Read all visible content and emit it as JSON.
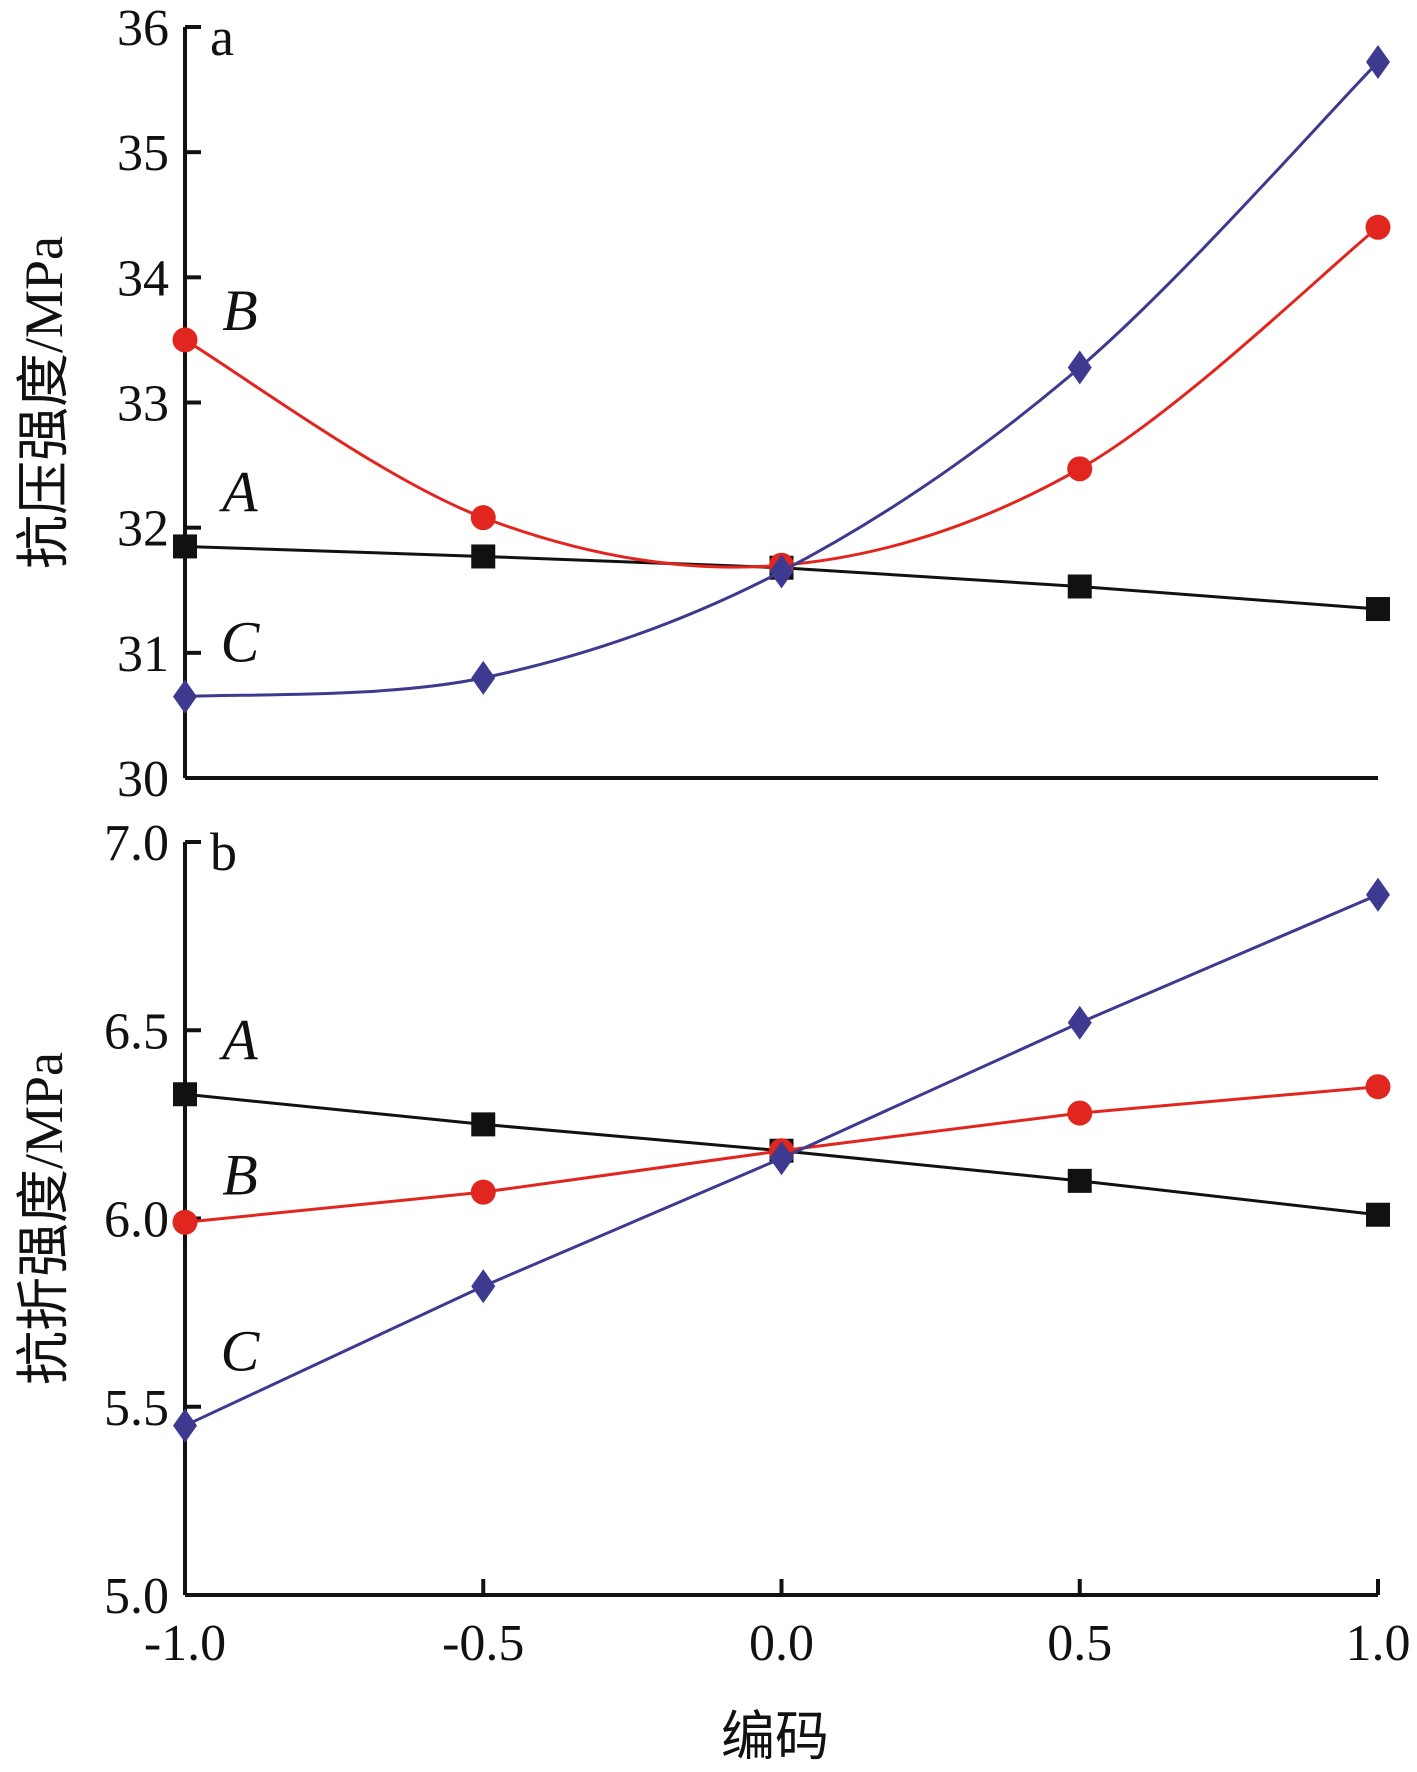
{
  "figure": {
    "xlabel": "编码",
    "x_tick_labels": [
      "-1.0",
      "-0.5",
      "0.0",
      "0.5",
      "1.0"
    ]
  },
  "chart_data": [
    {
      "type": "line",
      "panel_label": "a",
      "title": "",
      "xlabel": "",
      "ylabel": "抗压强度/MPa",
      "xlim": [
        -1.0,
        1.0
      ],
      "ylim": [
        30,
        36
      ],
      "y_ticks": [
        "30",
        "31",
        "32",
        "33",
        "34",
        "35",
        "36"
      ],
      "grid": false,
      "x": [
        -1.0,
        -0.5,
        0.0,
        0.5,
        1.0
      ],
      "series": [
        {
          "name": "A",
          "marker": "square",
          "color": "#111111",
          "values": [
            31.85,
            31.77,
            31.68,
            31.53,
            31.35
          ]
        },
        {
          "name": "B",
          "marker": "circle",
          "color": "#e0261f",
          "values": [
            33.5,
            32.08,
            31.7,
            32.47,
            34.4
          ]
        },
        {
          "name": "C",
          "marker": "diamond",
          "color": "#3d3a8f",
          "values": [
            30.65,
            30.8,
            31.65,
            33.28,
            35.72
          ]
        }
      ]
    },
    {
      "type": "line",
      "panel_label": "b",
      "title": "",
      "xlabel": "编码",
      "ylabel": "抗折强度/MPa",
      "xlim": [
        -1.0,
        1.0
      ],
      "ylim": [
        5.0,
        7.0
      ],
      "y_ticks": [
        "5.0",
        "5.5",
        "6.0",
        "6.5",
        "7.0"
      ],
      "grid": false,
      "x": [
        -1.0,
        -0.5,
        0.0,
        0.5,
        1.0
      ],
      "series": [
        {
          "name": "A",
          "marker": "square",
          "color": "#111111",
          "values": [
            6.33,
            6.25,
            6.18,
            6.1,
            6.01
          ]
        },
        {
          "name": "B",
          "marker": "circle",
          "color": "#e0261f",
          "values": [
            5.99,
            6.07,
            6.18,
            6.28,
            6.35
          ]
        },
        {
          "name": "C",
          "marker": "diamond",
          "color": "#3d3a8f",
          "values": [
            5.45,
            5.82,
            6.16,
            6.52,
            6.86
          ]
        }
      ]
    }
  ]
}
